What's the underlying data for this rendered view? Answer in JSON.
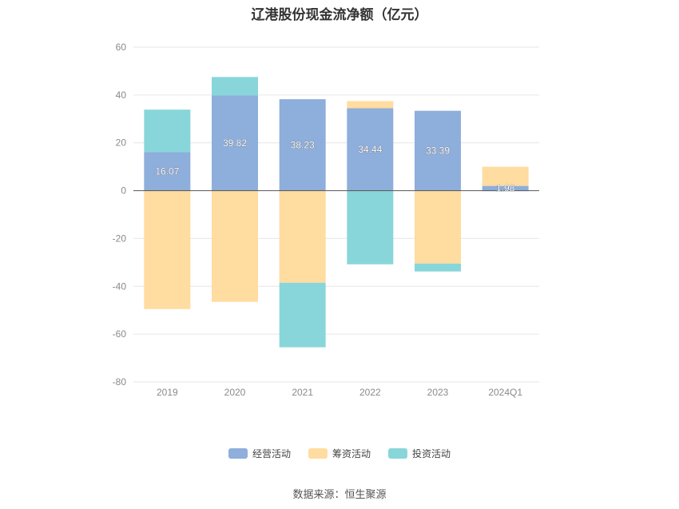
{
  "chart_data": {
    "type": "bar",
    "stacked": true,
    "title": "辽港股份现金流净额（亿元）",
    "categories": [
      "2019",
      "2020",
      "2021",
      "2022",
      "2023",
      "2024Q1"
    ],
    "series": [
      {
        "name": "经营活动",
        "color": "#8eaedb",
        "values": [
          16.07,
          39.82,
          38.23,
          34.44,
          33.39,
          1.98
        ],
        "labels": [
          "16.07",
          "39.82",
          "38.23",
          "34.44",
          "33.39",
          "1.98"
        ]
      },
      {
        "name": "筹资活动",
        "color": "#ffdc9f",
        "values": [
          -49.5,
          -46.5,
          -38.5,
          3.0,
          -30.5,
          8.0
        ]
      },
      {
        "name": "投资活动",
        "color": "#88d6da",
        "values": [
          17.8,
          7.7,
          -27.0,
          -30.8,
          -3.3,
          -0.2
        ]
      }
    ],
    "yticks": [
      60,
      40,
      20,
      0,
      -20,
      -40,
      -60,
      -80
    ],
    "ylim": [
      -80,
      60
    ],
    "grid": true,
    "legend_position": "bottom"
  },
  "source": "数据来源：恒生聚源"
}
